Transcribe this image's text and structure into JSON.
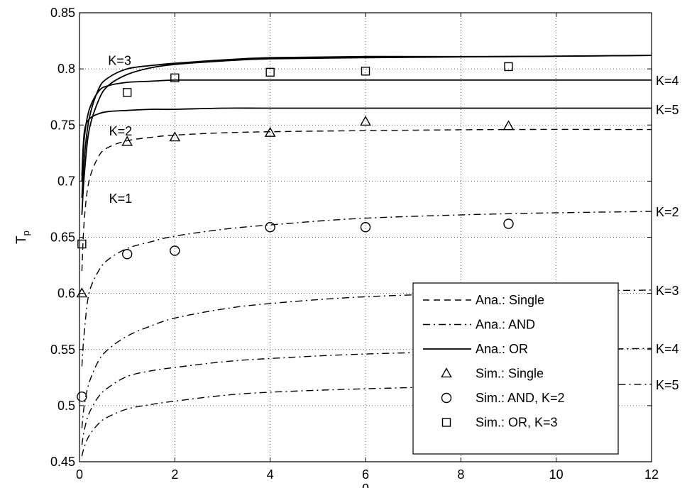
{
  "chart_data": {
    "type": "line",
    "xlabel": "θ",
    "ylabel": "T",
    "ylabel_subscript": "p",
    "xlim": [
      0,
      12
    ],
    "ylim": [
      0.45,
      0.85
    ],
    "x_ticks": [
      "0",
      "2",
      "4",
      "6",
      "8",
      "10",
      "12"
    ],
    "y_ticks": [
      "0.45",
      "0.5",
      "0.55",
      "0.6",
      "0.65",
      "0.7",
      "0.75",
      "0.8",
      "0.85"
    ],
    "grid": true,
    "legend_position": "bottom-right",
    "legend": [
      {
        "label": "Ana.: Single",
        "style": "dashed"
      },
      {
        "label": "Ana.: AND",
        "style": "dashdot"
      },
      {
        "label": "Ana.: OR",
        "style": "solid"
      },
      {
        "label": "Sim.: Single",
        "marker": "triangle"
      },
      {
        "label": "Sim.: AND, K=2",
        "marker": "circle"
      },
      {
        "label": "Sim.: OR, K=3",
        "marker": "square"
      }
    ],
    "series": [
      {
        "group": "single",
        "style": "dashed",
        "label": "K=1",
        "x": [
          0.05,
          0.1,
          0.2,
          0.4,
          0.6,
          1,
          1.5,
          2,
          3,
          4,
          6,
          9,
          12
        ],
        "y": [
          0.62,
          0.665,
          0.7,
          0.722,
          0.73,
          0.736,
          0.739,
          0.741,
          0.743,
          0.744,
          0.745,
          0.746,
          0.746
        ]
      },
      {
        "group": "or",
        "style": "solid",
        "label": "K=2",
        "x": [
          0.05,
          0.1,
          0.2,
          0.4,
          0.6,
          1,
          1.5,
          2,
          3,
          4,
          6,
          9,
          12
        ],
        "y": [
          0.705,
          0.743,
          0.755,
          0.76,
          0.762,
          0.763,
          0.764,
          0.764,
          0.765,
          0.765,
          0.765,
          0.765,
          0.765
        ]
      },
      {
        "group": "or",
        "style": "solid",
        "label": "K=3",
        "x": [
          0.05,
          0.1,
          0.2,
          0.4,
          0.6,
          1,
          1.5,
          2,
          3,
          4,
          6,
          9,
          12
        ],
        "y": [
          0.7,
          0.738,
          0.763,
          0.78,
          0.785,
          0.788,
          0.789,
          0.79,
          0.79,
          0.79,
          0.79,
          0.79,
          0.79
        ]
      },
      {
        "group": "or",
        "style": "solid",
        "label": "K=4",
        "x": [
          0.05,
          0.1,
          0.2,
          0.4,
          0.6,
          1,
          1.5,
          2,
          3,
          4,
          6,
          9,
          12
        ],
        "y": [
          0.685,
          0.72,
          0.755,
          0.782,
          0.792,
          0.8,
          0.803,
          0.805,
          0.808,
          0.81,
          0.811,
          0.811,
          0.812
        ]
      },
      {
        "group": "or",
        "style": "solid",
        "label": "K=5",
        "x": [
          0.05,
          0.1,
          0.2,
          0.4,
          0.6,
          1,
          1.5,
          2,
          3,
          4,
          6,
          9,
          12
        ],
        "y": [
          0.67,
          0.705,
          0.745,
          0.772,
          0.785,
          0.795,
          0.801,
          0.804,
          0.807,
          0.809,
          0.81,
          0.811,
          0.812
        ]
      },
      {
        "group": "and",
        "style": "dashdot",
        "label": "K=2",
        "x": [
          0.05,
          0.1,
          0.2,
          0.4,
          0.6,
          1,
          1.5,
          2,
          3,
          4,
          6,
          9,
          12
        ],
        "y": [
          0.535,
          0.565,
          0.6,
          0.62,
          0.63,
          0.64,
          0.646,
          0.651,
          0.657,
          0.661,
          0.667,
          0.671,
          0.673
        ]
      },
      {
        "group": "and",
        "style": "dashdot",
        "label": "K=3",
        "x": [
          0.05,
          0.1,
          0.2,
          0.4,
          0.6,
          1,
          1.5,
          2,
          3,
          4,
          6,
          9,
          12
        ],
        "y": [
          0.48,
          0.5,
          0.52,
          0.54,
          0.55,
          0.562,
          0.571,
          0.578,
          0.586,
          0.591,
          0.597,
          0.601,
          0.603
        ]
      },
      {
        "group": "and",
        "style": "dashdot",
        "label": "K=4",
        "x": [
          0.05,
          0.1,
          0.2,
          0.4,
          0.6,
          1,
          1.5,
          2,
          3,
          4,
          6,
          9,
          12
        ],
        "y": [
          0.465,
          0.478,
          0.493,
          0.508,
          0.516,
          0.526,
          0.531,
          0.534,
          0.539,
          0.542,
          0.546,
          0.549,
          0.551
        ]
      },
      {
        "group": "and",
        "style": "dashdot",
        "label": "K=5",
        "x": [
          0.05,
          0.1,
          0.2,
          0.4,
          0.6,
          1,
          1.5,
          2,
          3,
          4,
          6,
          9,
          12
        ],
        "y": [
          0.455,
          0.463,
          0.473,
          0.484,
          0.49,
          0.497,
          0.501,
          0.504,
          0.509,
          0.512,
          0.515,
          0.518,
          0.519
        ]
      }
    ],
    "sim_single": {
      "x": [
        0.05,
        1,
        2,
        4,
        6,
        9
      ],
      "y": [
        0.6,
        0.735,
        0.739,
        0.743,
        0.753,
        0.749
      ]
    },
    "sim_and_k2": {
      "x": [
        0.05,
        1,
        2,
        4,
        6,
        9
      ],
      "y": [
        0.508,
        0.635,
        0.638,
        0.659,
        0.659,
        0.662
      ]
    },
    "sim_or_k3": {
      "x": [
        0.05,
        1,
        2,
        4,
        6,
        9
      ],
      "y": [
        0.644,
        0.779,
        0.792,
        0.797,
        0.798,
        0.802
      ]
    },
    "annotations": [
      {
        "text": "K=3",
        "x": 0.6,
        "y": 0.808
      },
      {
        "text": "K=2",
        "x": 0.62,
        "y": 0.745
      },
      {
        "text": "K=1",
        "x": 0.62,
        "y": 0.685
      },
      {
        "text": "K=4",
        "side": "right",
        "y": 0.79
      },
      {
        "text": "K=5",
        "side": "right",
        "y": 0.764
      },
      {
        "text": "K=2",
        "side": "right",
        "y": 0.673
      },
      {
        "text": "K=3",
        "side": "right",
        "y": 0.603
      },
      {
        "text": "K=4",
        "side": "right",
        "y": 0.551
      },
      {
        "text": "K=5",
        "side": "right",
        "y": 0.519
      }
    ]
  }
}
